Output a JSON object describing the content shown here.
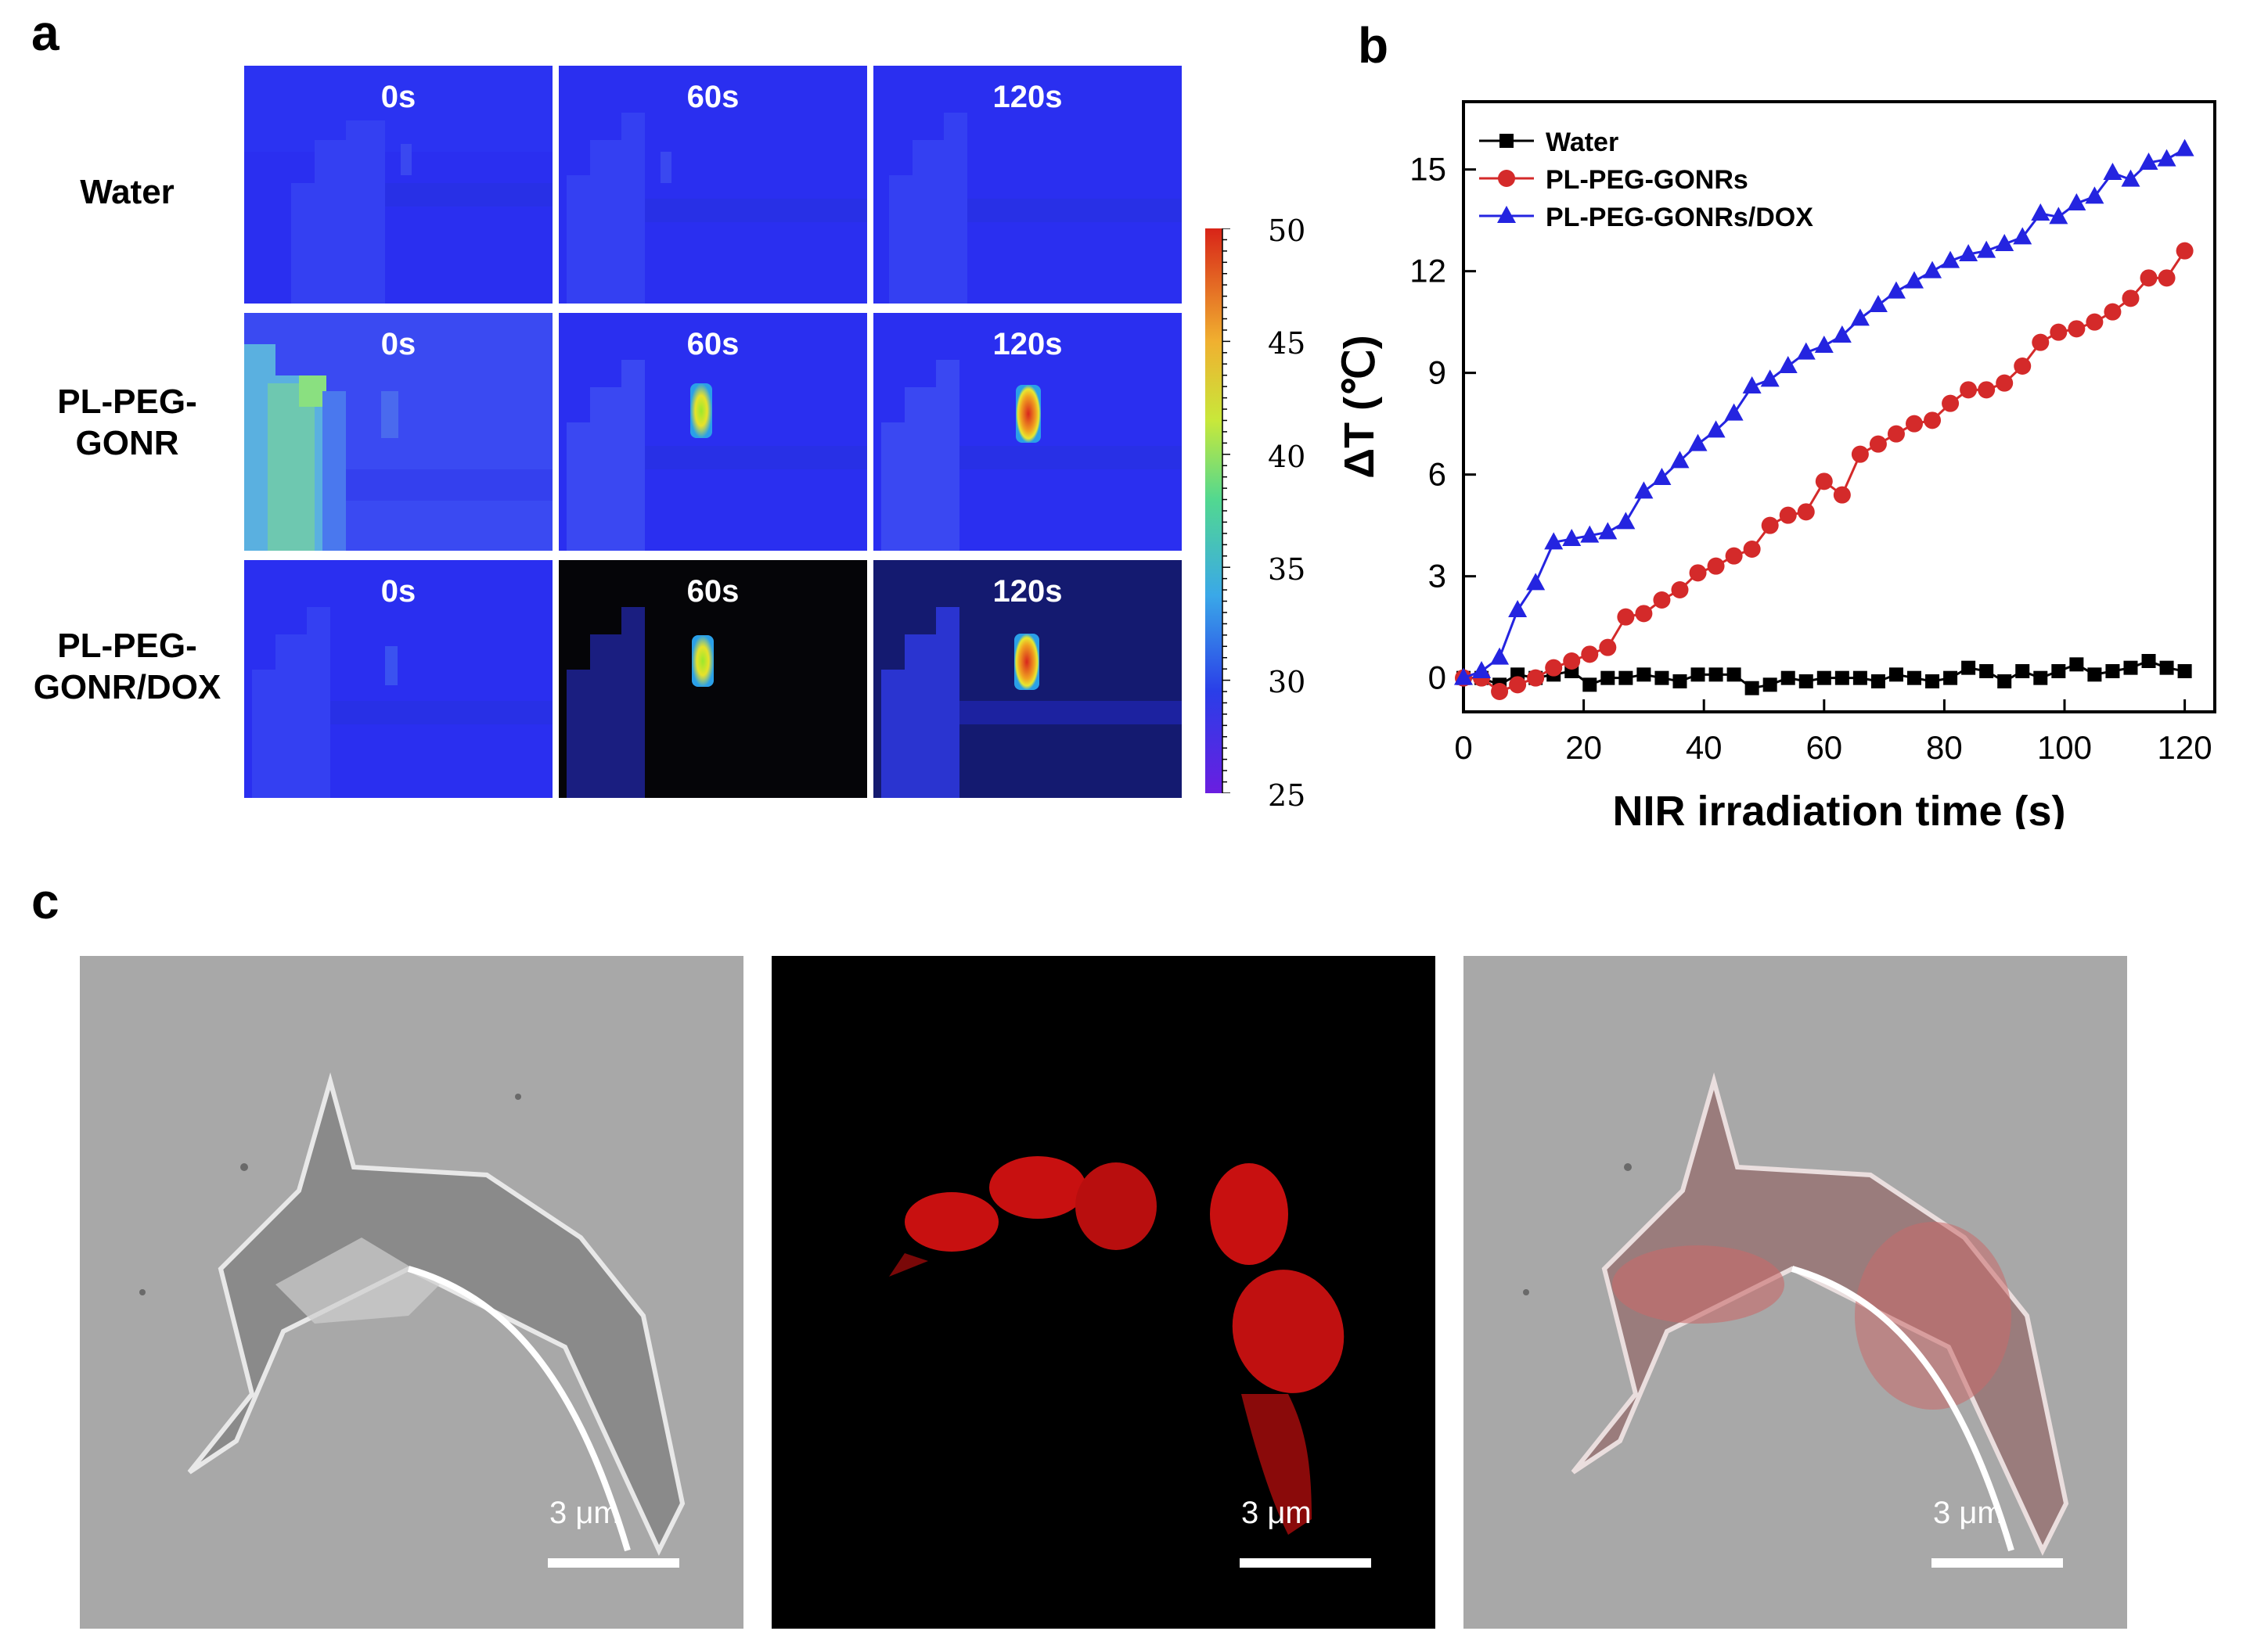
{
  "panels": {
    "a": "a",
    "b": "b",
    "c": "c"
  },
  "panel_a": {
    "row_labels": [
      [
        "Water"
      ],
      [
        "PL-PEG-",
        "GONR"
      ],
      [
        "PL-PEG-",
        "GONR/DOX"
      ]
    ],
    "time_labels": [
      "0s",
      "60s",
      "120s"
    ],
    "colorbar": {
      "ticks": [
        "50",
        "45",
        "40",
        "35",
        "30",
        "25"
      ],
      "min": 25,
      "max": 50
    }
  },
  "chart_data": {
    "type": "line",
    "title": "",
    "xlabel": "NIR irradiation time (s)",
    "ylabel": "ΔT (℃)",
    "xlim": [
      0,
      125
    ],
    "ylim": [
      -1,
      17
    ],
    "xticks": [
      0,
      20,
      40,
      60,
      80,
      100,
      120
    ],
    "yticks": [
      0,
      3,
      6,
      9,
      12,
      15
    ],
    "legend_position": "top-left",
    "series": [
      {
        "name": "Water",
        "color": "#000000",
        "marker": "square",
        "x": [
          0,
          3,
          6,
          9,
          12,
          15,
          18,
          21,
          24,
          27,
          30,
          33,
          36,
          39,
          42,
          45,
          48,
          51,
          54,
          57,
          60,
          63,
          66,
          69,
          72,
          75,
          78,
          81,
          84,
          87,
          90,
          93,
          96,
          99,
          102,
          105,
          108,
          111,
          114,
          117,
          120
        ],
        "y": [
          0,
          0,
          -0.2,
          0.1,
          0,
          0.1,
          0.2,
          -0.2,
          0,
          0,
          0.1,
          0,
          -0.1,
          0.1,
          0.1,
          0.1,
          -0.3,
          -0.2,
          0,
          -0.1,
          0,
          0,
          0,
          -0.1,
          0.1,
          0,
          -0.1,
          0,
          0.3,
          0.2,
          -0.1,
          0.2,
          0,
          0.2,
          0.4,
          0.1,
          0.2,
          0.3,
          0.5,
          0.3,
          0.2
        ]
      },
      {
        "name": "PL-PEG-GONRs",
        "color": "#d42a2a",
        "marker": "circle",
        "x": [
          0,
          3,
          6,
          9,
          12,
          15,
          18,
          21,
          24,
          27,
          30,
          33,
          36,
          39,
          42,
          45,
          48,
          51,
          54,
          57,
          60,
          63,
          66,
          69,
          72,
          75,
          78,
          81,
          84,
          87,
          90,
          93,
          96,
          99,
          102,
          105,
          108,
          111,
          114,
          117,
          120
        ],
        "y": [
          0,
          0,
          -0.4,
          -0.2,
          0,
          0.3,
          0.5,
          0.7,
          0.9,
          1.8,
          1.9,
          2.3,
          2.6,
          3.1,
          3.3,
          3.6,
          3.8,
          4.5,
          4.8,
          4.9,
          5.8,
          5.4,
          6.6,
          6.9,
          7.2,
          7.5,
          7.6,
          8.1,
          8.5,
          8.5,
          8.7,
          9.2,
          9.9,
          10.2,
          10.3,
          10.5,
          10.8,
          11.2,
          11.8,
          11.8,
          12.6
        ]
      },
      {
        "name": "PL-PEG-GONRs/DOX",
        "color": "#2424e0",
        "marker": "triangle",
        "x": [
          0,
          3,
          6,
          9,
          12,
          15,
          18,
          21,
          24,
          27,
          30,
          33,
          36,
          39,
          42,
          45,
          48,
          51,
          54,
          57,
          60,
          63,
          66,
          69,
          72,
          75,
          78,
          81,
          84,
          87,
          90,
          93,
          96,
          99,
          102,
          105,
          108,
          111,
          114,
          117,
          120
        ],
        "y": [
          0,
          0.2,
          0.6,
          2.0,
          2.8,
          4.0,
          4.1,
          4.2,
          4.3,
          4.6,
          5.5,
          5.9,
          6.4,
          6.9,
          7.3,
          7.8,
          8.6,
          8.8,
          9.2,
          9.6,
          9.8,
          10.1,
          10.6,
          11.0,
          11.4,
          11.7,
          12.0,
          12.3,
          12.5,
          12.6,
          12.8,
          13.0,
          13.7,
          13.6,
          14.0,
          14.2,
          14.9,
          14.7,
          15.2,
          15.3,
          15.6
        ]
      }
    ]
  },
  "panel_c": {
    "scale_labels": [
      "3 μm",
      "3 μm",
      "3 μm"
    ]
  }
}
